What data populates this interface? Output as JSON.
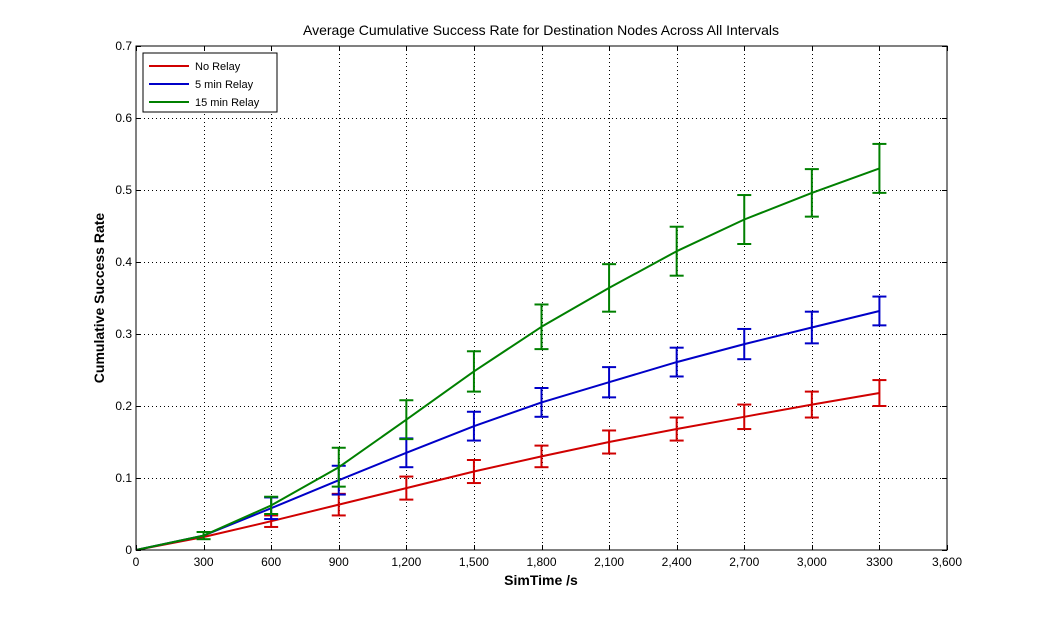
{
  "chart_data": {
    "type": "line",
    "title": "Average Cumulative Success Rate for Destination Nodes Across All Intervals",
    "xlabel": "SimTime /s",
    "ylabel": "Cumulative Success Rate",
    "xlim": [
      0,
      3600
    ],
    "ylim": [
      0,
      0.7
    ],
    "grid": true,
    "legend_position": "top-left",
    "x_ticks": [
      0,
      300,
      600,
      900,
      1200,
      1500,
      1800,
      2100,
      2400,
      2700,
      3000,
      3300,
      3600
    ],
    "x_tick_labels": [
      "0",
      "300",
      "600",
      "900",
      "1,200",
      "1,500",
      "1,800",
      "2,100",
      "2,400",
      "2,700",
      "3,000",
      "3300",
      "3,600"
    ],
    "y_ticks": [
      0,
      0.1,
      0.2,
      0.3,
      0.4,
      0.5,
      0.6,
      0.7
    ],
    "y_tick_labels": [
      "0",
      "0.1",
      "0.2",
      "0.3",
      "0.4",
      "0.5",
      "0.6",
      "0.7"
    ],
    "x": [
      0,
      300,
      600,
      900,
      1200,
      1500,
      1800,
      2100,
      2400,
      2700,
      3000,
      3300
    ],
    "series": [
      {
        "name": "No Relay",
        "color": "#d00000",
        "values": [
          0.0,
          0.018,
          0.04,
          0.063,
          0.086,
          0.109,
          0.13,
          0.15,
          0.168,
          0.185,
          0.202,
          0.218
        ],
        "errors": [
          0.0,
          0.0,
          0.008,
          0.015,
          0.016,
          0.016,
          0.015,
          0.016,
          0.016,
          0.017,
          0.018,
          0.018
        ]
      },
      {
        "name": "5 min Relay",
        "color": "#0000c8",
        "values": [
          0.0,
          0.02,
          0.058,
          0.097,
          0.135,
          0.172,
          0.205,
          0.233,
          0.261,
          0.286,
          0.309,
          0.332
        ],
        "errors": [
          0.0,
          0.0,
          0.015,
          0.02,
          0.02,
          0.02,
          0.02,
          0.021,
          0.02,
          0.021,
          0.022,
          0.02
        ]
      },
      {
        "name": "15 min Relay",
        "color": "#008000",
        "values": [
          0.0,
          0.02,
          0.062,
          0.115,
          0.181,
          0.248,
          0.31,
          0.364,
          0.415,
          0.459,
          0.496,
          0.53
        ],
        "errors": [
          0.0,
          0.005,
          0.012,
          0.027,
          0.027,
          0.028,
          0.031,
          0.033,
          0.034,
          0.034,
          0.033,
          0.034
        ]
      }
    ]
  }
}
